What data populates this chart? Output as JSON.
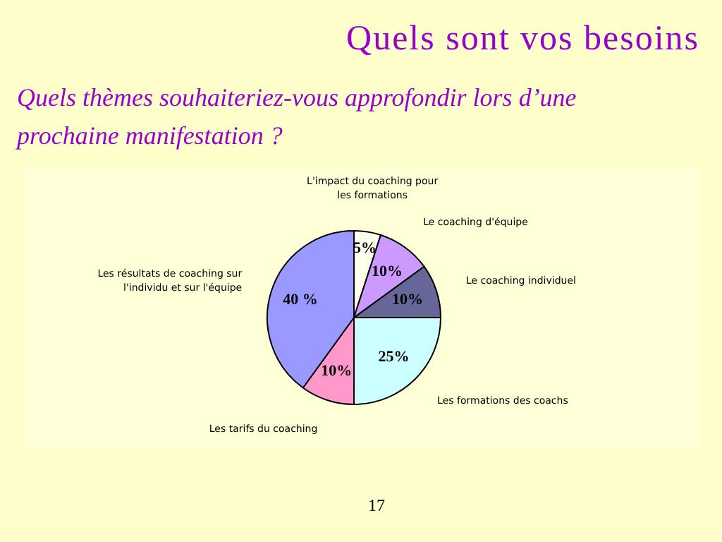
{
  "chart_data": {
    "type": "pie",
    "title": "Quels sont vos besoins",
    "subtitle": "Quels thèmes souhaiteriez-vous approfondir lors d’une prochaine manifestation ?",
    "categories": [
      "L'impact du coaching pour les formations",
      "Le coaching d'équipe",
      "Le coaching individuel",
      "Les formations des coachs",
      "Les tarifs du coaching",
      "Les résultats de coaching sur l'individu et sur l'équipe"
    ],
    "values": [
      5,
      10,
      10,
      25,
      10,
      40
    ],
    "value_labels": [
      "5%",
      "10%",
      "10%",
      "25%",
      "10%",
      "40 %"
    ],
    "colors": [
      "#ffffee",
      "#cc99ff",
      "#666699",
      "#ccffff",
      "#ff99cc",
      "#9999ff"
    ],
    "annotations": [
      "17"
    ],
    "legend": false
  }
}
